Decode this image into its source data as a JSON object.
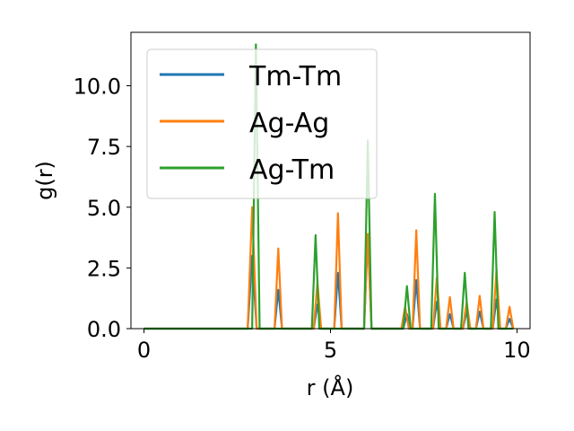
{
  "chart_data": {
    "type": "line",
    "xlabel": "r (Å)",
    "ylabel": "g(r)",
    "xlim": [
      -0.35,
      10.35
    ],
    "ylim": [
      0.0,
      12.2
    ],
    "xticks": [
      0,
      5,
      10
    ],
    "xtick_labels": [
      "0",
      "5",
      "10"
    ],
    "yticks": [
      0.0,
      2.5,
      5.0,
      7.5,
      10.0
    ],
    "ytick_labels": [
      "0.0",
      "2.5",
      "5.0",
      "7.5",
      "10.0"
    ],
    "grid": false,
    "legend_position": "upper-left",
    "series": [
      {
        "name": "Tm-Tm",
        "color": "#1f77b4",
        "x": [
          0,
          2.78,
          2.9,
          3.02,
          3.5,
          3.6,
          3.7,
          4.55,
          4.65,
          4.75,
          5.1,
          5.2,
          5.3,
          5.9,
          6.0,
          6.1,
          6.95,
          7.05,
          7.15,
          7.2,
          7.3,
          7.4,
          7.75,
          7.85,
          7.95,
          8.1,
          8.2,
          8.3,
          8.55,
          8.65,
          8.75,
          8.9,
          9.0,
          9.1,
          9.35,
          9.45,
          9.55,
          9.7,
          9.8,
          9.9
        ],
        "y": [
          0,
          0,
          3.0,
          0,
          0,
          1.6,
          0,
          0,
          1.0,
          0,
          0,
          2.3,
          0,
          0,
          3.8,
          0,
          0,
          0.6,
          0,
          0,
          2.0,
          0,
          0,
          1.1,
          0,
          0,
          0.6,
          0,
          0,
          0.7,
          0,
          0,
          0.7,
          0,
          0,
          1.2,
          0,
          0,
          0.4,
          0
        ]
      },
      {
        "name": "Ag-Ag",
        "color": "#ff7f0e",
        "x": [
          0,
          2.78,
          2.9,
          3.02,
          3.5,
          3.6,
          3.7,
          4.55,
          4.65,
          4.75,
          5.1,
          5.2,
          5.3,
          5.9,
          6.0,
          6.1,
          6.9,
          7.0,
          7.1,
          7.2,
          7.3,
          7.4,
          7.75,
          7.85,
          7.95,
          8.1,
          8.2,
          8.3,
          8.55,
          8.65,
          8.75,
          8.9,
          9.0,
          9.1,
          9.35,
          9.45,
          9.55,
          9.7,
          9.8,
          9.9
        ],
        "y": [
          0,
          0,
          5.0,
          0,
          0,
          3.3,
          0,
          0,
          1.9,
          0,
          0,
          4.75,
          0,
          0,
          3.9,
          0,
          0,
          0.9,
          0,
          0,
          4.05,
          0,
          0,
          2.1,
          0,
          0,
          1.3,
          0,
          0,
          1.1,
          0,
          0,
          1.35,
          0,
          0,
          2.4,
          0,
          0,
          0.9,
          0
        ]
      },
      {
        "name": "Ag-Tm",
        "color": "#2ca02c",
        "x": [
          0,
          2.9,
          3.0,
          3.1,
          4.5,
          4.6,
          4.7,
          5.9,
          6.0,
          6.1,
          6.95,
          7.05,
          7.15,
          7.7,
          7.8,
          7.9,
          8.5,
          8.6,
          8.7,
          9.3,
          9.4,
          9.5,
          9.9
        ],
        "y": [
          0,
          0,
          11.7,
          0,
          0,
          3.85,
          0,
          0,
          7.75,
          0,
          0,
          1.75,
          0,
          0,
          5.55,
          0,
          0,
          2.3,
          0,
          0,
          4.8,
          0,
          0
        ]
      }
    ]
  }
}
